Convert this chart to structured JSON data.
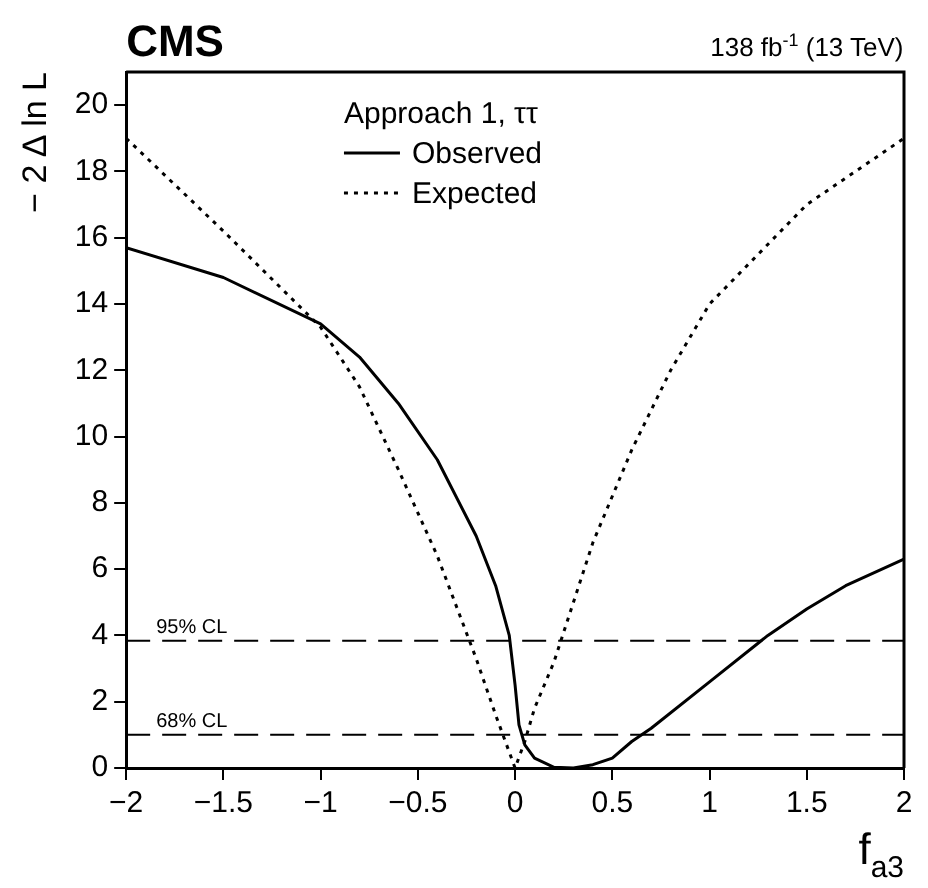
{
  "chart_data": {
    "type": "line",
    "title": "CMS",
    "subtitle": "138 fb$^{-1}$ (13 TeV)",
    "xlabel": "f$_{a3}$",
    "ylabel": "− 2 Δ ln L",
    "legend_title": "Approach 1, ττ",
    "legend": "top",
    "grid": false,
    "marker": "none",
    "xlim": [
      -2,
      2
    ],
    "xticks": [
      -2,
      -1.5,
      -1,
      -0.5,
      0,
      0.5,
      1,
      1.5,
      2
    ],
    "ylim": [
      0,
      21
    ],
    "yticks": [
      0,
      2,
      4,
      6,
      8,
      10,
      12,
      14,
      16,
      18,
      20
    ],
    "series": [
      {
        "name": "Observed",
        "color": "#000000",
        "line_style": "solid",
        "x": [
          -2,
          -1.5,
          -1,
          -0.8,
          -0.6,
          -0.4,
          -0.2,
          -0.1,
          -0.03,
          0,
          0.02,
          0.05,
          0.1,
          0.2,
          0.3,
          0.4,
          0.5,
          0.6,
          0.7,
          1,
          1.3,
          1.5,
          1.7,
          2
        ],
        "values": [
          15.7,
          14.8,
          13.4,
          12.4,
          11,
          9.3,
          7,
          5.5,
          4,
          2.5,
          1.3,
          0.7,
          0.3,
          0.02,
          0,
          0.1,
          0.3,
          0.8,
          1.2,
          2.6,
          4,
          4.8,
          5.5,
          6.3
        ]
      },
      {
        "name": "Expected",
        "color": "#000000",
        "line_style": "dotted",
        "x": [
          -2,
          -1.5,
          -1,
          -0.8,
          -0.6,
          -0.4,
          -0.2,
          -0.1,
          -0.05,
          0,
          0.05,
          0.1,
          0.2,
          0.4,
          0.6,
          0.8,
          1,
          1.5,
          2
        ],
        "values": [
          19,
          16.2,
          13.3,
          11.5,
          9,
          6.4,
          3.3,
          1.6,
          0.8,
          0,
          0.8,
          1.8,
          3.2,
          6.8,
          9.6,
          12,
          14,
          17,
          19
        ]
      }
    ],
    "ref_lines": [
      {
        "axis": "y",
        "value": 3.84,
        "label": "95% CL",
        "line_style": "dashed"
      },
      {
        "axis": "y",
        "value": 1,
        "label": "68% CL",
        "line_style": "dashed"
      }
    ]
  }
}
